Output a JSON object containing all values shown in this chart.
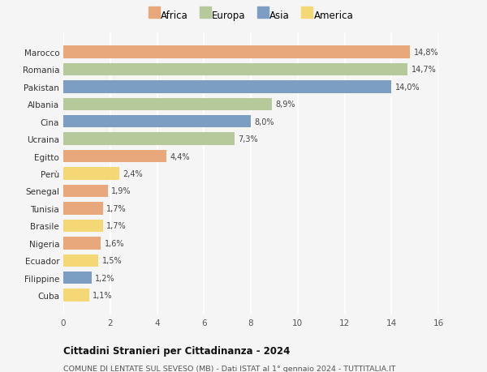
{
  "countries": [
    "Marocco",
    "Romania",
    "Pakistan",
    "Albania",
    "Cina",
    "Ucraina",
    "Egitto",
    "Perù",
    "Senegal",
    "Tunisia",
    "Brasile",
    "Nigeria",
    "Ecuador",
    "Filippine",
    "Cuba"
  ],
  "values": [
    14.8,
    14.7,
    14.0,
    8.9,
    8.0,
    7.3,
    4.4,
    2.4,
    1.9,
    1.7,
    1.7,
    1.6,
    1.5,
    1.2,
    1.1
  ],
  "labels": [
    "14,8%",
    "14,7%",
    "14,0%",
    "8,9%",
    "8,0%",
    "7,3%",
    "4,4%",
    "2,4%",
    "1,9%",
    "1,7%",
    "1,7%",
    "1,6%",
    "1,5%",
    "1,2%",
    "1,1%"
  ],
  "continents": [
    "Africa",
    "Europa",
    "Asia",
    "Europa",
    "Asia",
    "Europa",
    "Africa",
    "America",
    "Africa",
    "Africa",
    "America",
    "Africa",
    "America",
    "Asia",
    "America"
  ],
  "continent_colors": {
    "Africa": "#E8A87C",
    "Europa": "#B5C99A",
    "Asia": "#7B9EC2",
    "America": "#F5D876"
  },
  "legend_order": [
    "Africa",
    "Europa",
    "Asia",
    "America"
  ],
  "legend_colors": [
    "#E8A87C",
    "#B5C99A",
    "#7B9EC2",
    "#F5D876"
  ],
  "xlim": [
    0,
    16
  ],
  "xticks": [
    0,
    2,
    4,
    6,
    8,
    10,
    12,
    14,
    16
  ],
  "title1": "Cittadini Stranieri per Cittadinanza - 2024",
  "title2": "COMUNE DI LENTATE SUL SEVESO (MB) - Dati ISTAT al 1° gennaio 2024 - TUTTITALIA.IT",
  "background_color": "#f5f5f5"
}
